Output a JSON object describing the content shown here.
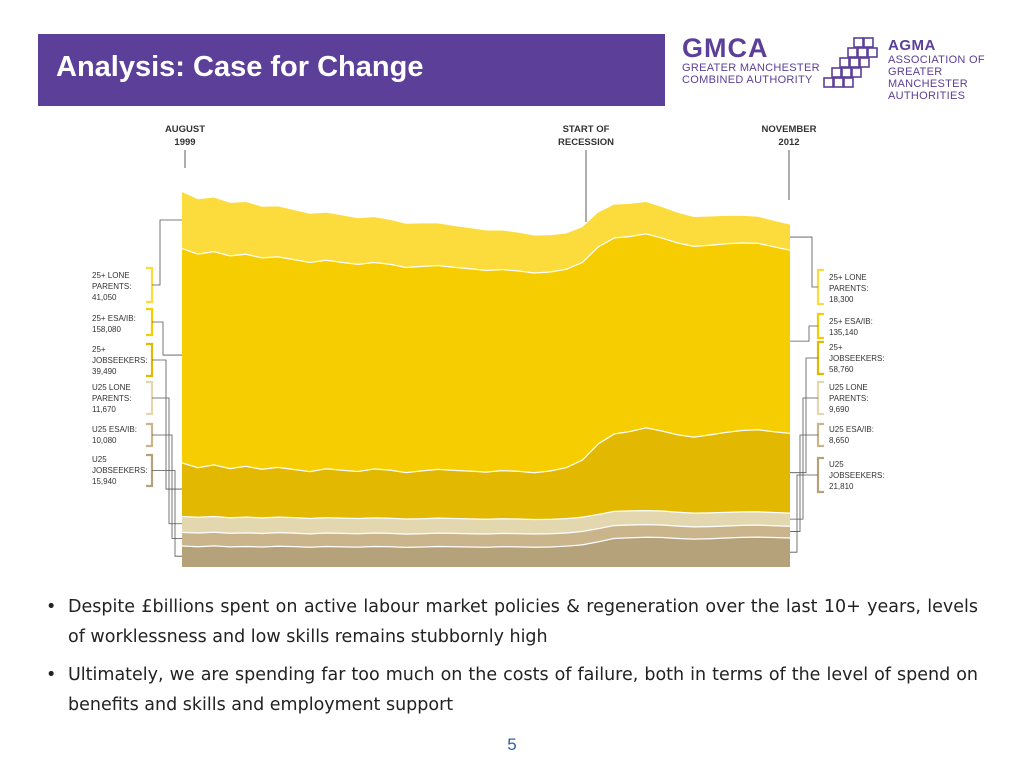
{
  "slide": {
    "title": "Analysis: Case for Change",
    "page_number": "5",
    "colors": {
      "title_bar": "#5b3f98",
      "accent": "#5b3f98"
    }
  },
  "logos": {
    "gmca": {
      "name": "GMCA",
      "line1": "GREATER MANCHESTER",
      "line2": "COMBINED AUTHORITY"
    },
    "agma": {
      "name": "AGMA",
      "line1": "ASSOCIATION OF",
      "line2": "GREATER MANCHESTER",
      "line3": "AUTHORITIES"
    }
  },
  "bullets": [
    "Despite £billions spent on active labour market policies & regeneration over the last 10+ years, levels of worklessness and low skills remains stubbornly high",
    "Ultimately, we are spending far too much on the costs of failure, both in terms of the level of spend on benefits and skills and employment support"
  ],
  "chart_data": {
    "type": "area",
    "stacked": true,
    "title": "",
    "xlabel": "",
    "ylabel": "",
    "x_start": "AUGUST 1999",
    "x_end": "NOVEMBER 2012",
    "annotations": {
      "start": [
        "AUGUST",
        "1999"
      ],
      "recession": [
        "START OF",
        "RECESSION"
      ],
      "end": [
        "NOVEMBER",
        "2012"
      ]
    },
    "left_labels": [
      {
        "lines": [
          "25+ LONE",
          "PARENTS:"
        ],
        "value": "41,050"
      },
      {
        "lines": [
          "25+ ESA/IB:"
        ],
        "value": "158,080"
      },
      {
        "lines": [
          "25+",
          "JOBSEEKERS:"
        ],
        "value": "39,490"
      },
      {
        "lines": [
          "U25 LONE",
          "PARENTS:"
        ],
        "value": "11,670"
      },
      {
        "lines": [
          "U25 ESA/IB:"
        ],
        "value": "10,080"
      },
      {
        "lines": [
          "U25",
          "JOBSEEKERS:"
        ],
        "value": "15,940"
      }
    ],
    "right_labels": [
      {
        "lines": [
          "25+ LONE",
          "PARENTS:"
        ],
        "value": "18,300"
      },
      {
        "lines": [
          "25+ ESA/IB:"
        ],
        "value": "135,140"
      },
      {
        "lines": [
          "25+",
          "JOBSEEKERS:"
        ],
        "value": "58,760"
      },
      {
        "lines": [
          "U25 LONE",
          "PARENTS:"
        ],
        "value": "9,690"
      },
      {
        "lines": [
          "U25 ESA/IB:"
        ],
        "value": "8,650"
      },
      {
        "lines": [
          "U25",
          "JOBSEEKERS:"
        ],
        "value": "21,810"
      }
    ],
    "series": [
      {
        "key": "u25_jobseekers",
        "start": 15940,
        "end": 21810,
        "color": "#b5a27b"
      },
      {
        "key": "u25_esa_ib",
        "start": 10080,
        "end": 8650,
        "color": "#c9b48c"
      },
      {
        "key": "u25_lone_parents",
        "start": 11670,
        "end": 9690,
        "color": "#e3d7b0"
      },
      {
        "key": "jobseekers_25plus",
        "start": 39490,
        "end": 58760,
        "color": "#e2b800"
      },
      {
        "key": "esa_ib_25plus",
        "start": 158080,
        "end": 135140,
        "color": "#f6cd00"
      },
      {
        "key": "lone_parents_25plus",
        "start": 41050,
        "end": 18300,
        "color": "#fcdc3c"
      }
    ],
    "profiles": {
      "u25_jobseekers": [
        15940,
        15400,
        16000,
        15300,
        15600,
        15200,
        15800,
        15500,
        15000,
        15600,
        15300,
        15100,
        15600,
        15400,
        14900,
        15200,
        15600,
        15400,
        15200,
        15000,
        15400,
        15300,
        15000,
        15200,
        15800,
        16800,
        19000,
        21500,
        22000,
        22400,
        22200,
        21500,
        21000,
        21300,
        21800,
        22300,
        22500,
        22200,
        21810
      ],
      "u25_esa_ib": [
        10080,
        10100,
        10050,
        10000,
        10050,
        9980,
        10000,
        9950,
        9900,
        9950,
        9900,
        9880,
        9900,
        9850,
        9800,
        9800,
        9850,
        9820,
        9800,
        9780,
        9800,
        9760,
        9750,
        9740,
        9760,
        9780,
        9700,
        9500,
        9400,
        9300,
        9200,
        9100,
        9000,
        8950,
        8900,
        8850,
        8800,
        8700,
        8650
      ],
      "u25_lone_parents": [
        11670,
        11600,
        11650,
        11500,
        11550,
        11500,
        11450,
        11400,
        11350,
        11300,
        11300,
        11250,
        11200,
        11150,
        11100,
        11050,
        11000,
        10950,
        10900,
        10850,
        10800,
        10750,
        10700,
        10650,
        10600,
        10550,
        10500,
        10450,
        10400,
        10350,
        10300,
        10250,
        10200,
        10100,
        10000,
        9950,
        9850,
        9750,
        9690
      ],
      "jobseekers_25plus": [
        39490,
        36500,
        38000,
        36200,
        37500,
        35800,
        36600,
        35500,
        34500,
        36000,
        35300,
        34600,
        36000,
        35500,
        34200,
        35300,
        36000,
        35500,
        35200,
        34800,
        35500,
        35200,
        34500,
        35600,
        37500,
        42000,
        52000,
        57000,
        58500,
        61000,
        59000,
        57000,
        56000,
        57500,
        59000,
        60000,
        60500,
        59500,
        58760
      ],
      "esa_ib_25plus": [
        158080,
        157500,
        157200,
        156800,
        156300,
        155800,
        155200,
        154700,
        154200,
        153700,
        153200,
        152700,
        152200,
        151700,
        151200,
        150700,
        150200,
        149700,
        149200,
        148700,
        148200,
        147700,
        147200,
        146700,
        146200,
        145700,
        145200,
        144500,
        143800,
        143000,
        142200,
        141400,
        140600,
        139800,
        139000,
        138200,
        137400,
        136300,
        135140
      ],
      "lone_parents_25plus": [
        41050,
        40000,
        39500,
        38600,
        38000,
        37300,
        36800,
        36000,
        35400,
        34700,
        34200,
        33500,
        33000,
        32300,
        31800,
        31200,
        30600,
        30000,
        29500,
        28900,
        28300,
        27800,
        27200,
        26600,
        26000,
        25500,
        24800,
        24200,
        23600,
        23000,
        22400,
        21800,
        21200,
        20700,
        20100,
        19600,
        19100,
        18700,
        18300
      ]
    },
    "y_max": 300000,
    "grid": false,
    "legend": "side labels"
  }
}
